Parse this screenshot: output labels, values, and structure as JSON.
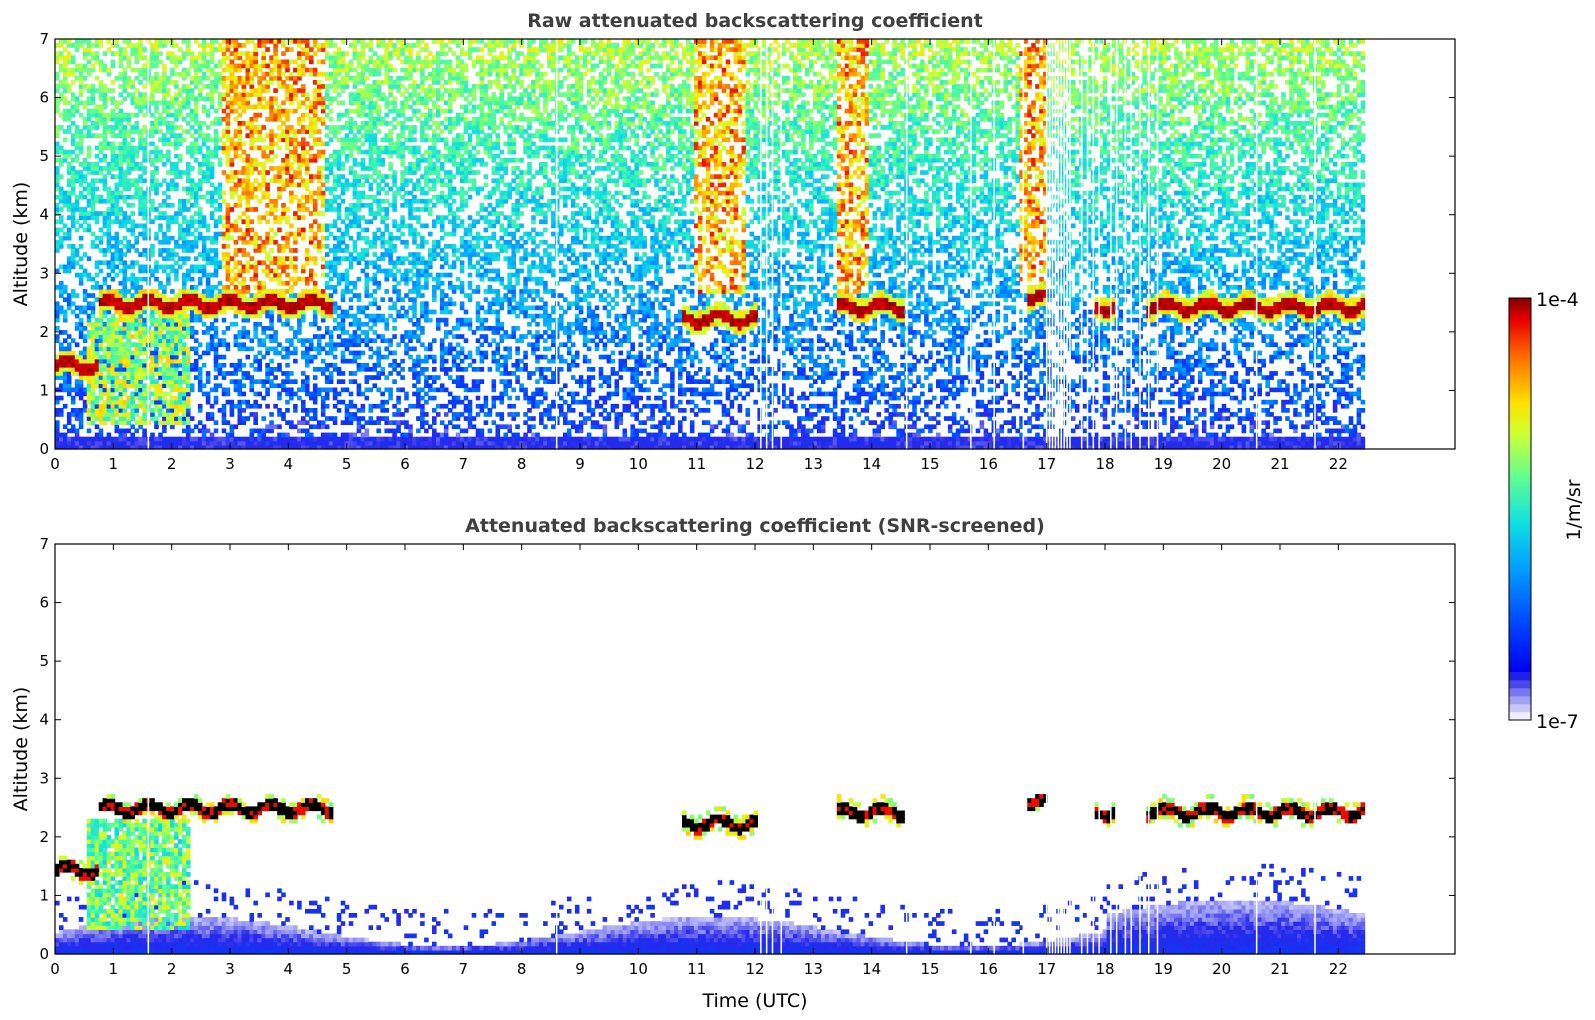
{
  "chart_data": [
    {
      "type": "heatmap",
      "title": "Raw attenuated backscattering coefficient",
      "ylabel": "Altitude (km)",
      "xlabel": "",
      "xlim": [
        0,
        24
      ],
      "ylim": [
        0,
        7
      ],
      "xticks": [
        "0",
        "1",
        "2",
        "3",
        "4",
        "5",
        "6",
        "7",
        "8",
        "9",
        "10",
        "11",
        "12",
        "13",
        "14",
        "15",
        "16",
        "17",
        "18",
        "19",
        "20",
        "21",
        "22"
      ],
      "yticks": [
        "0",
        "1",
        "2",
        "3",
        "4",
        "5",
        "6",
        "7"
      ],
      "data_end_hour": 22.45,
      "cloud_layers": [
        {
          "start": 0.0,
          "end": 0.7,
          "altitude": 1.4
        },
        {
          "start": 0.7,
          "end": 4.7,
          "altitude": 2.45
        },
        {
          "start": 10.7,
          "end": 12.0,
          "altitude": 2.2
        },
        {
          "start": 13.4,
          "end": 14.5,
          "altitude": 2.4
        },
        {
          "start": 16.6,
          "end": 17.0,
          "altitude": 2.55
        },
        {
          "start": 17.8,
          "end": 18.1,
          "altitude": 2.4
        },
        {
          "start": 18.7,
          "end": 22.45,
          "altitude": 2.4
        }
      ],
      "high_signal_columns": [
        {
          "start": 2.8,
          "end": 4.6
        },
        {
          "start": 10.9,
          "end": 11.8
        },
        {
          "start": 13.4,
          "end": 13.9
        },
        {
          "start": 16.5,
          "end": 17.0
        }
      ],
      "missing_data_hours": [
        1.6,
        8.6,
        12.1,
        12.2,
        12.3,
        12.45,
        14.6,
        15.7,
        16.1,
        16.6,
        17.0,
        17.05,
        17.1,
        17.15,
        17.2,
        17.25,
        17.3,
        17.35,
        17.4,
        17.6,
        17.7,
        17.8,
        17.9,
        18.1,
        18.2,
        18.35,
        18.45,
        18.6,
        18.75,
        18.9,
        20.6,
        21.6
      ],
      "screened": false
    },
    {
      "type": "heatmap",
      "title": "Attenuated backscattering coefficient (SNR-screened)",
      "ylabel": "Altitude (km)",
      "xlabel": "Time (UTC)",
      "xlim": [
        0,
        24
      ],
      "ylim": [
        0,
        7
      ],
      "xticks": [
        "0",
        "1",
        "2",
        "3",
        "4",
        "5",
        "6",
        "7",
        "8",
        "9",
        "10",
        "11",
        "12",
        "13",
        "14",
        "15",
        "16",
        "17",
        "18",
        "19",
        "20",
        "21",
        "22"
      ],
      "yticks": [
        "0",
        "1",
        "2",
        "3",
        "4",
        "5",
        "6",
        "7"
      ],
      "data_end_hour": 22.45,
      "screened": true
    }
  ],
  "colorbar": {
    "label": "1/m/sr",
    "min_label": "1e-7",
    "max_label": "1e-4",
    "scale": "log",
    "colormap": "jet",
    "low_end_colors": [
      "#eeeefe",
      "#c8c8f8",
      "#a0a0f4",
      "#7878ee",
      "#4848ea",
      "#2020e8"
    ]
  }
}
